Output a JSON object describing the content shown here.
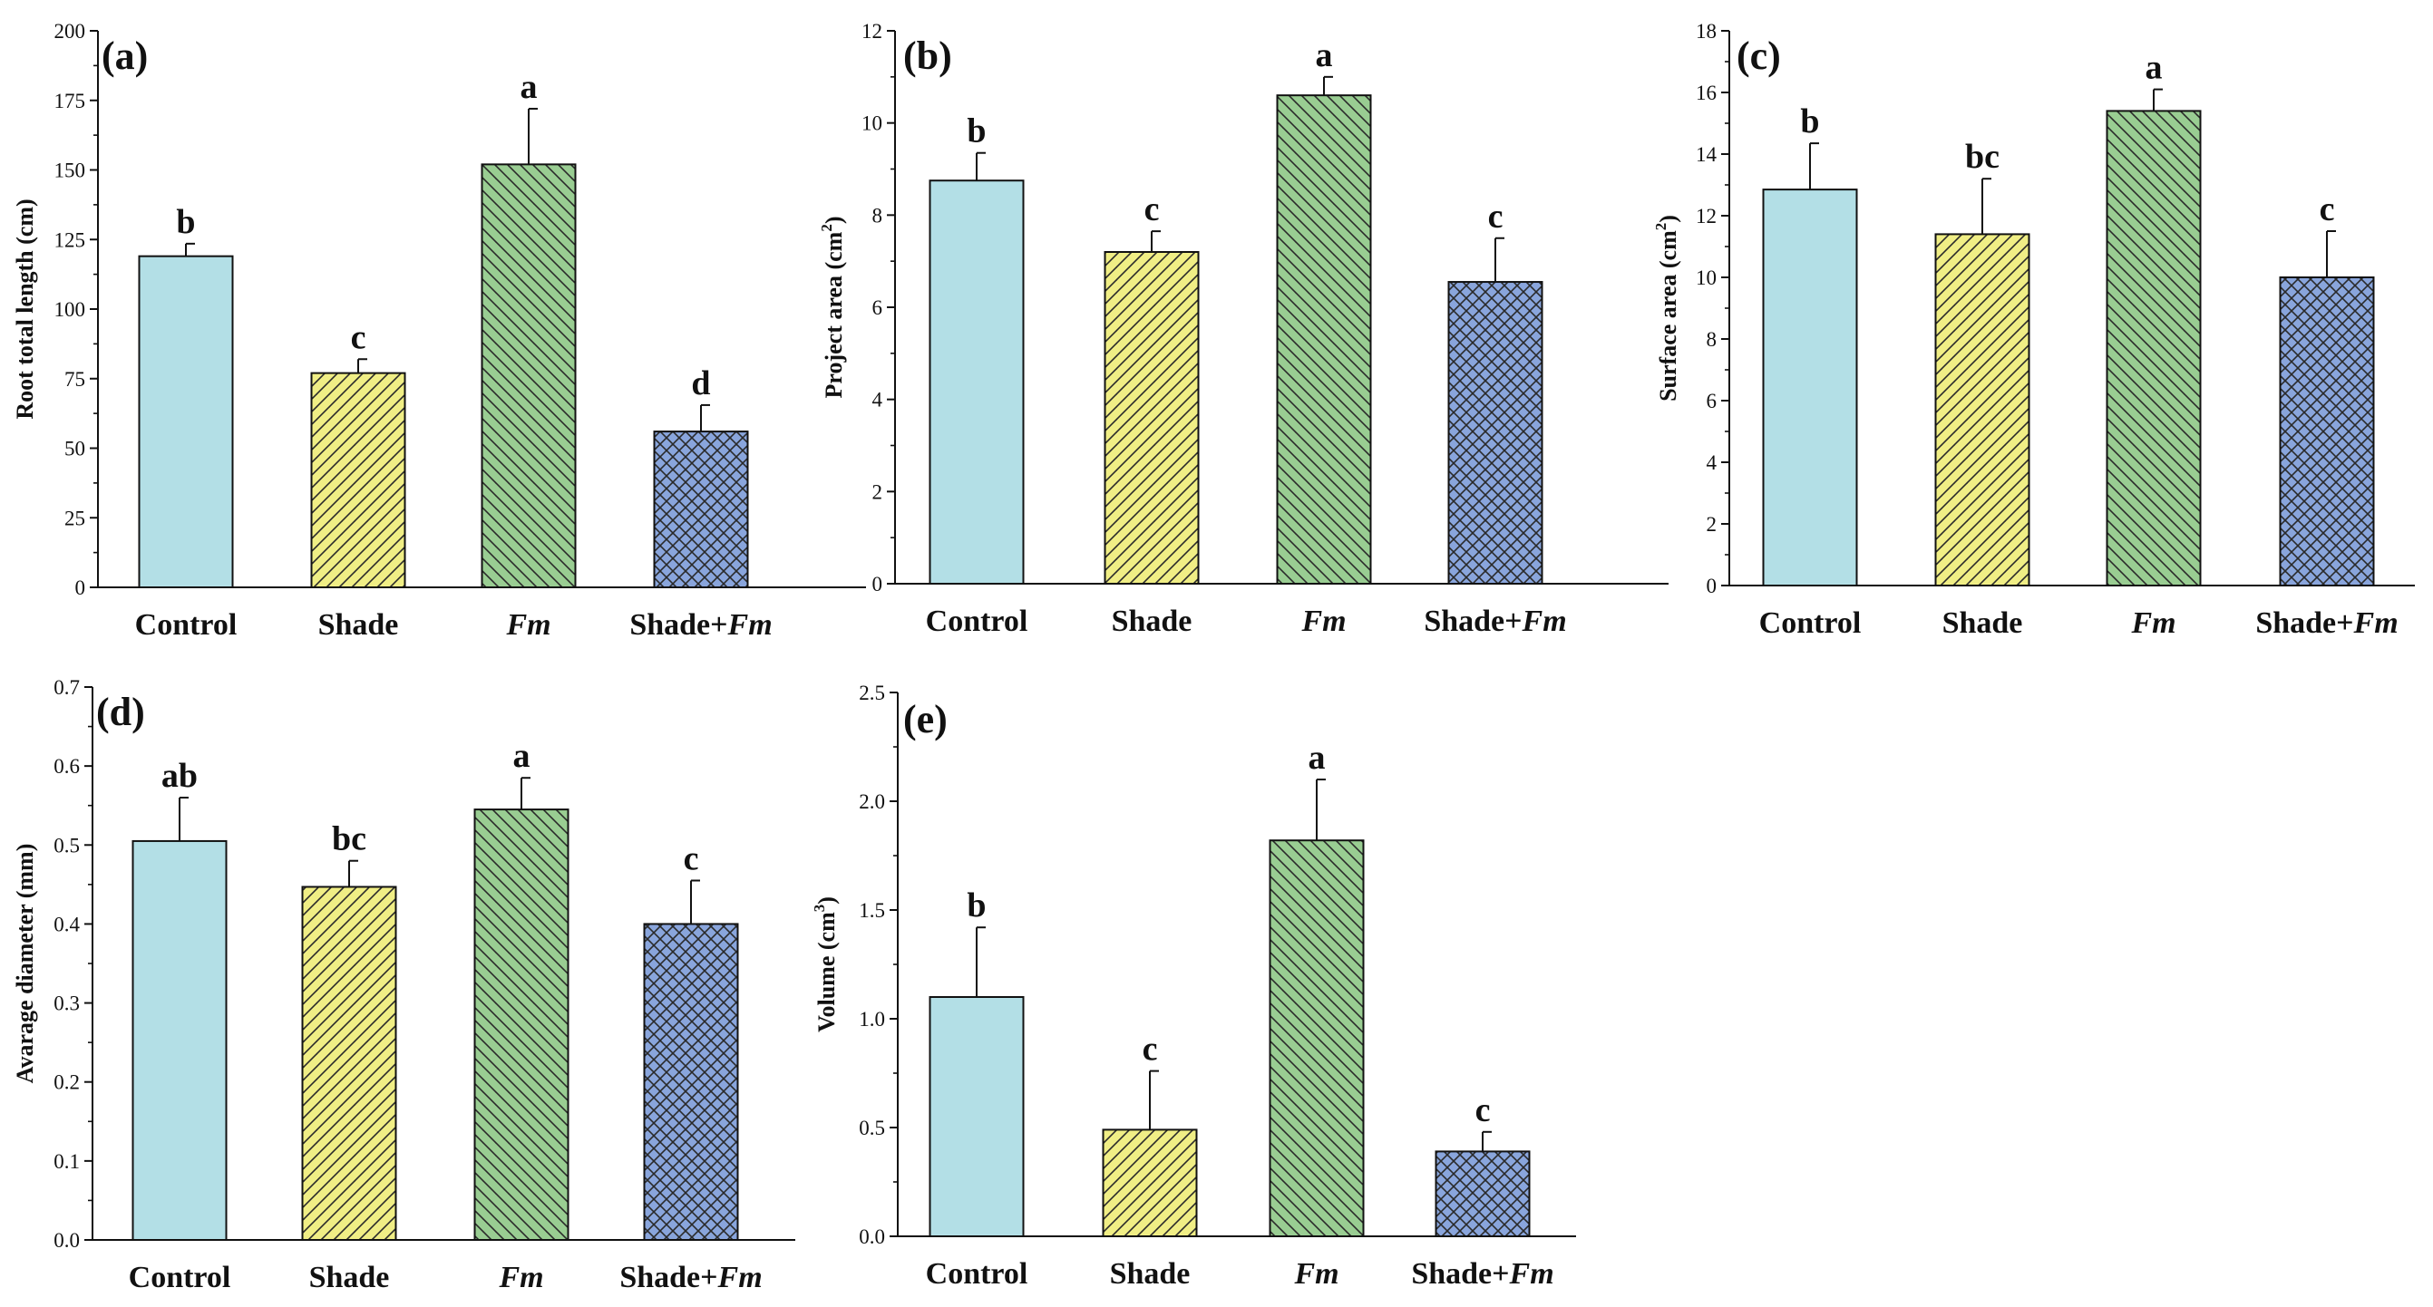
{
  "colors": {
    "control": "#b3dfe6",
    "shade": "#f0ee85",
    "fm": "#99cd92",
    "shade_fm": "#89a5dc",
    "hatch": "#2a2a2a",
    "axis": "#111111"
  },
  "chart_data": [
    {
      "type": "bar",
      "panel": "(a)",
      "title": "",
      "xlabel": "",
      "ylabel": "Root total length (cm)",
      "ylabel_parts": [
        "Root total length (cm)"
      ],
      "categories": [
        "Control",
        "Shade",
        "Fm",
        "Shade+Fm"
      ],
      "category_parts": [
        [
          "Control",
          ""
        ],
        [
          "Shade",
          ""
        ],
        [
          "",
          "Fm"
        ],
        [
          "Shade+",
          "Fm"
        ]
      ],
      "values": [
        119,
        77,
        152,
        56
      ],
      "errors": [
        4.5,
        5,
        20,
        9.5
      ],
      "letters": [
        "b",
        "c",
        "a",
        "d"
      ],
      "ylim": [
        0,
        200
      ],
      "yticks": [
        0,
        25,
        50,
        75,
        100,
        125,
        150,
        175,
        200
      ],
      "ytick_labels": [
        "0",
        "25",
        "50",
        "75",
        "100",
        "125",
        "150",
        "175",
        "200"
      ],
      "grid": false
    },
    {
      "type": "bar",
      "panel": "(b)",
      "title": "",
      "xlabel": "",
      "ylabel": "Project area (cm2)",
      "ylabel_parts": [
        "Project area (cm",
        "2",
        ")"
      ],
      "categories": [
        "Control",
        "Shade",
        "Fm",
        "Shade+Fm"
      ],
      "category_parts": [
        [
          "Control",
          ""
        ],
        [
          "Shade",
          ""
        ],
        [
          "",
          "Fm"
        ],
        [
          "Shade+",
          "Fm"
        ]
      ],
      "values": [
        8.75,
        7.2,
        10.6,
        6.55
      ],
      "errors": [
        0.6,
        0.45,
        0.4,
        0.95
      ],
      "letters": [
        "b",
        "c",
        "a",
        "c"
      ],
      "ylim": [
        0,
        12
      ],
      "yticks": [
        0,
        2,
        4,
        6,
        8,
        10,
        12
      ],
      "ytick_labels": [
        "0",
        "2",
        "4",
        "6",
        "8",
        "10",
        "12"
      ],
      "grid": false
    },
    {
      "type": "bar",
      "panel": "(c)",
      "title": "",
      "xlabel": "",
      "ylabel": "Surface area (cm2)",
      "ylabel_parts": [
        "Surface area (cm",
        "2",
        ")"
      ],
      "categories": [
        "Control",
        "Shade",
        "Fm",
        "Shade+Fm"
      ],
      "category_parts": [
        [
          "Control",
          ""
        ],
        [
          "Shade",
          ""
        ],
        [
          "",
          "Fm"
        ],
        [
          "Shade+",
          "Fm"
        ]
      ],
      "values": [
        12.85,
        11.4,
        15.4,
        10
      ],
      "errors": [
        1.5,
        1.8,
        0.7,
        1.5
      ],
      "letters": [
        "b",
        "bc",
        "a",
        "c"
      ],
      "ylim": [
        0,
        18
      ],
      "yticks": [
        0,
        2,
        4,
        6,
        8,
        10,
        12,
        14,
        16,
        18
      ],
      "ytick_labels": [
        "0",
        "2",
        "4",
        "6",
        "8",
        "10",
        "12",
        "14",
        "16",
        "18"
      ],
      "grid": false
    },
    {
      "type": "bar",
      "panel": "(d)",
      "title": "",
      "xlabel": "",
      "ylabel": "Avarage diameter (mm)",
      "ylabel_parts": [
        "Avarage diameter (mm)"
      ],
      "categories": [
        "Control",
        "Shade",
        "Fm",
        "Shade+Fm"
      ],
      "category_parts": [
        [
          "Control",
          ""
        ],
        [
          "Shade",
          ""
        ],
        [
          "",
          "Fm"
        ],
        [
          "Shade+",
          "Fm"
        ]
      ],
      "values": [
        0.505,
        0.447,
        0.545,
        0.4
      ],
      "errors": [
        0.055,
        0.033,
        0.04,
        0.055
      ],
      "letters": [
        "ab",
        "bc",
        "a",
        "c"
      ],
      "ylim": [
        0,
        0.7
      ],
      "yticks": [
        0,
        0.1,
        0.2,
        0.3,
        0.4,
        0.5,
        0.6,
        0.7
      ],
      "ytick_labels": [
        "0.0",
        "0.1",
        "0.2",
        "0.3",
        "0.4",
        "0.5",
        "0.6",
        "0.7"
      ],
      "grid": false
    },
    {
      "type": "bar",
      "panel": "(e)",
      "title": "",
      "xlabel": "",
      "ylabel": "Volume (cm3)",
      "ylabel_parts": [
        "Volume (cm",
        "3",
        ")"
      ],
      "categories": [
        "Control",
        "Shade",
        "Fm",
        "Shade+Fm"
      ],
      "category_parts": [
        [
          "Control",
          ""
        ],
        [
          "Shade",
          ""
        ],
        [
          "",
          "Fm"
        ],
        [
          "Shade+",
          "Fm"
        ]
      ],
      "values": [
        1.1,
        0.49,
        1.82,
        0.39
      ],
      "errors": [
        0.32,
        0.27,
        0.28,
        0.09
      ],
      "letters": [
        "b",
        "c",
        "a",
        "c"
      ],
      "ylim": [
        0,
        2.5
      ],
      "yticks": [
        0,
        0.5,
        1.0,
        1.5,
        2.0,
        2.5
      ],
      "ytick_labels": [
        "0.0",
        "0.5",
        "1.0",
        "1.5",
        "2.0",
        "2.5"
      ],
      "grid": false
    }
  ]
}
